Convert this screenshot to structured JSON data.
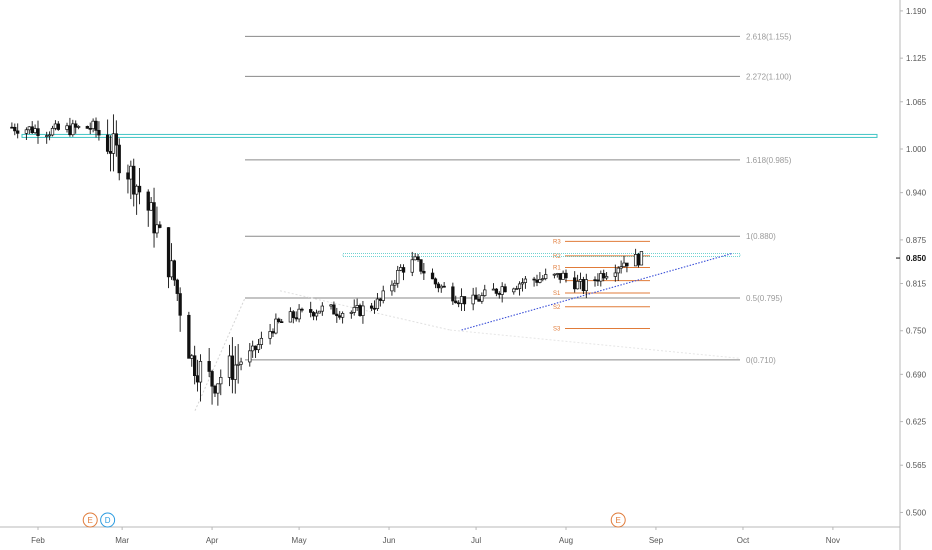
{
  "chart_data": {
    "type": "candlestick",
    "price_axis": {
      "ticks": [
        "1.190",
        "1.125",
        "1.065",
        "1.000",
        "0.940",
        "0.875",
        "0.815",
        "0.750",
        "0.690",
        "0.625",
        "0.565",
        "0.500"
      ],
      "range": [
        0.48,
        1.205
      ],
      "last_price_label": "0.850",
      "last_price": 0.85
    },
    "time_axis": {
      "ticks": [
        "Feb",
        "Mar",
        "Apr",
        "May",
        "Jun",
        "Jul",
        "Aug",
        "Sep",
        "Oct",
        "Nov"
      ]
    },
    "fib_levels": [
      {
        "label": "2.618(1.155)",
        "value": 1.155
      },
      {
        "label": "2.272(1.100)",
        "value": 1.1
      },
      {
        "label": "1.618(0.985)",
        "value": 0.985
      },
      {
        "label": "1(0.880)",
        "value": 0.88
      },
      {
        "label": "0.5(0.795)",
        "value": 0.795
      },
      {
        "label": "0(0.710)",
        "value": 0.71
      }
    ],
    "pivot_levels": [
      {
        "label": "R3",
        "value": 0.873
      },
      {
        "label": "R2",
        "value": 0.853
      },
      {
        "label": "R1",
        "value": 0.837
      },
      {
        "label": "P",
        "value": 0.819
      },
      {
        "label": "S1",
        "value": 0.802
      },
      {
        "label": "S2",
        "value": 0.783
      },
      {
        "label": "S3",
        "value": 0.753
      }
    ],
    "horizontal_lines": [
      {
        "value": 1.018,
        "color": "#40c4c4"
      },
      {
        "value": 0.854,
        "color": "#40c4c4"
      }
    ],
    "trendline": {
      "from": {
        "date": "2020-06-26",
        "price": 0.751
      },
      "to": {
        "date": "2020-09-27",
        "price": 0.856
      },
      "color": "#3a4fd8"
    },
    "events": [
      {
        "label": "E",
        "date": "2020-02-19",
        "color": "#e07b39"
      },
      {
        "label": "D",
        "date": "2020-02-25",
        "color": "#2b9be0"
      },
      {
        "label": "E",
        "date": "2020-08-19",
        "color": "#e07b39"
      }
    ],
    "keypoints": [
      [
        "2020-01-23",
        1.03
      ],
      [
        "2020-02-05",
        1.025
      ],
      [
        "2020-02-20",
        1.03
      ],
      [
        "2020-02-27",
        1.0
      ],
      [
        "2020-03-05",
        0.96
      ],
      [
        "2020-03-12",
        0.9
      ],
      [
        "2020-03-19",
        0.82
      ],
      [
        "2020-03-25",
        0.71
      ],
      [
        "2020-04-01",
        0.68
      ],
      [
        "2020-04-08",
        0.7
      ],
      [
        "2020-04-15",
        0.72
      ],
      [
        "2020-04-22",
        0.755
      ],
      [
        "2020-04-29",
        0.77
      ],
      [
        "2020-05-08",
        0.78
      ],
      [
        "2020-05-20",
        0.775
      ],
      [
        "2020-05-29",
        0.79
      ],
      [
        "2020-06-05",
        0.835
      ],
      [
        "2020-06-10",
        0.845
      ],
      [
        "2020-06-17",
        0.815
      ],
      [
        "2020-06-25",
        0.795
      ],
      [
        "2020-06-30",
        0.79
      ],
      [
        "2020-07-10",
        0.81
      ],
      [
        "2020-07-20",
        0.82
      ],
      [
        "2020-07-31",
        0.825
      ],
      [
        "2020-08-07",
        0.81
      ],
      [
        "2020-08-14",
        0.83
      ],
      [
        "2020-08-21",
        0.845
      ],
      [
        "2020-08-27",
        0.85
      ]
    ]
  }
}
